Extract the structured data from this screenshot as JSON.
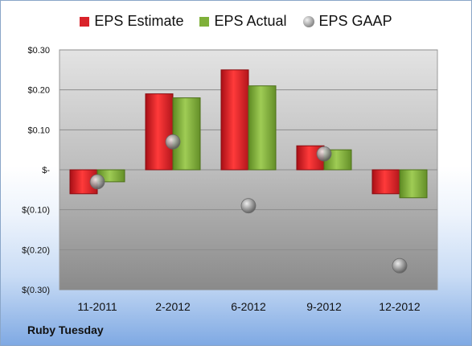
{
  "company": "Ruby Tuesday",
  "legend": {
    "estimate": "EPS Estimate",
    "actual": "EPS Actual",
    "gaap": "EPS GAAP"
  },
  "colors": {
    "estimate": "#d9232a",
    "actual": "#7fb03a",
    "gaap": "#9a9a9a"
  },
  "chart_data": {
    "type": "bar",
    "categories": [
      "11-2011",
      "2-2012",
      "6-2012",
      "9-2012",
      "12-2012"
    ],
    "series": [
      {
        "name": "EPS Estimate",
        "values": [
          -0.06,
          0.19,
          0.25,
          0.06,
          -0.06
        ]
      },
      {
        "name": "EPS Actual",
        "values": [
          -0.03,
          0.18,
          0.21,
          0.05,
          -0.07
        ]
      },
      {
        "name": "EPS GAAP",
        "values": [
          -0.03,
          0.07,
          -0.09,
          0.04,
          -0.24
        ]
      }
    ],
    "yticks": [
      {
        "value": 0.3,
        "label": "$0.30"
      },
      {
        "value": 0.2,
        "label": "$0.20"
      },
      {
        "value": 0.1,
        "label": "$0.10"
      },
      {
        "value": 0.0,
        "label": "$-"
      },
      {
        "value": -0.1,
        "label": "$(0.10)"
      },
      {
        "value": -0.2,
        "label": "$(0.20)"
      },
      {
        "value": -0.3,
        "label": "$(0.30)"
      }
    ],
    "ylim": [
      -0.3,
      0.3
    ],
    "grid": true,
    "legend_position": "top"
  }
}
